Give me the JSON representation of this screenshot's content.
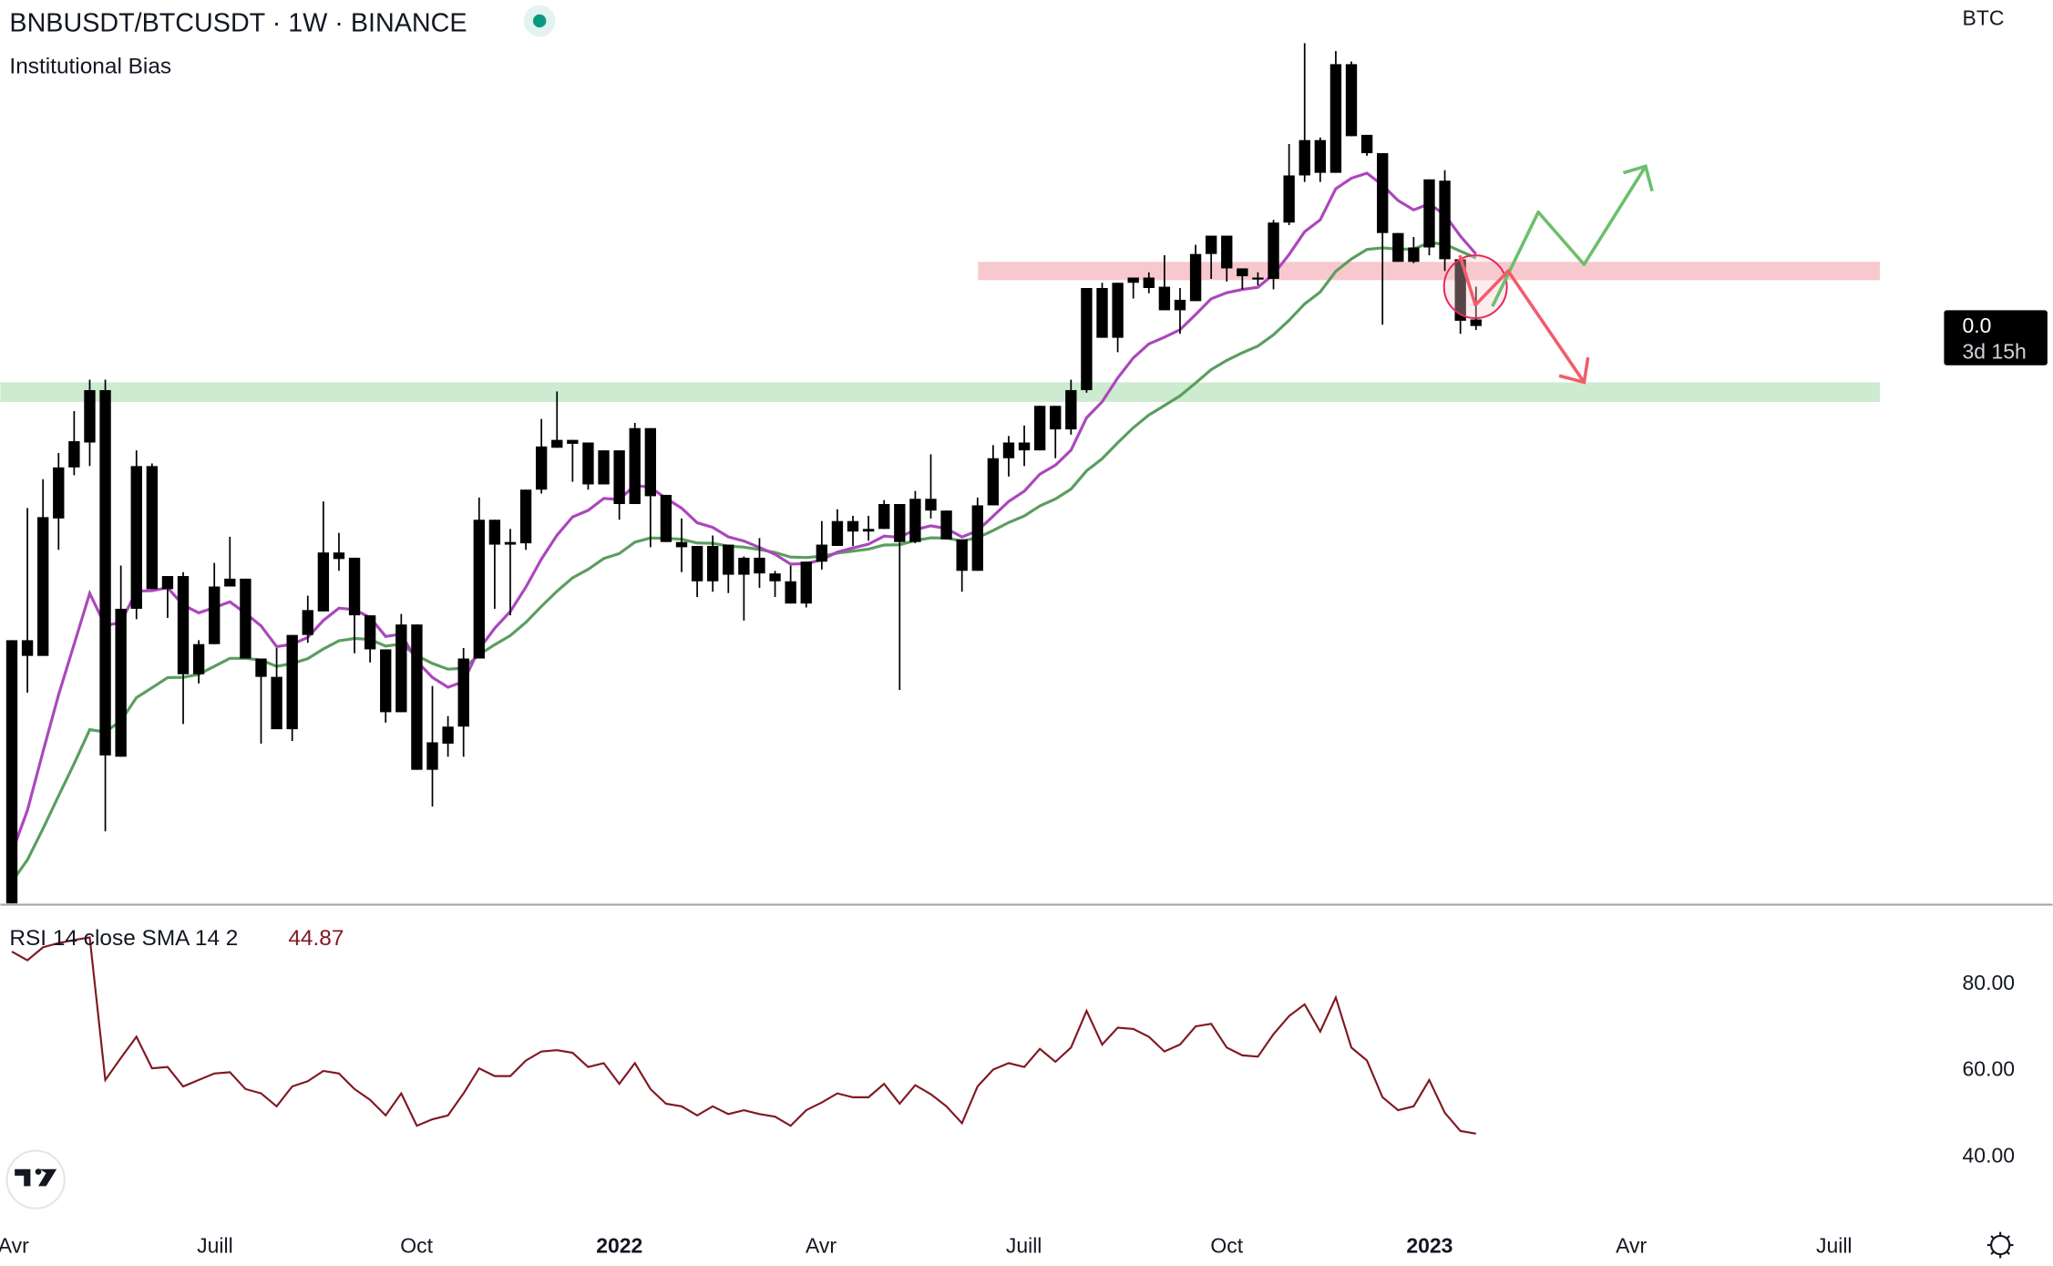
{
  "header": {
    "symbol_title": "BNBUSDT/BTCUSDT · 1W · BINANCE",
    "indicator_name": "Institutional Bias",
    "status_color": "#089981"
  },
  "price_axis": {
    "currency": "BTC",
    "last_price": "0.0",
    "countdown": "3d 15h"
  },
  "rsi": {
    "label": "RSI 14 close SMA 14 2",
    "value": "44.87",
    "value_color": "#801922",
    "ticks": [
      "80.00",
      "60.00",
      "40.00"
    ]
  },
  "time_axis": {
    "labels": [
      {
        "text": "Avr",
        "bold": false
      },
      {
        "text": "Juill",
        "bold": false
      },
      {
        "text": "Oct",
        "bold": false
      },
      {
        "text": "2022",
        "bold": true
      },
      {
        "text": "Avr",
        "bold": false
      },
      {
        "text": "Juill",
        "bold": false
      },
      {
        "text": "Oct",
        "bold": false
      },
      {
        "text": "2023",
        "bold": true
      },
      {
        "text": "Avr",
        "bold": false
      },
      {
        "text": "Juill",
        "bold": false
      }
    ]
  },
  "colors": {
    "candle": "#000000",
    "ema_fast": "#ab47bc",
    "ema_slow": "#5a9e5e",
    "rsi_line": "#801922",
    "resistance_zone": "#f8c8cf",
    "support_zone": "#cdebd0",
    "bull_path": "#6cbf6c",
    "bear_path": "#f25c6a"
  },
  "chart_data": {
    "type": "candlestick",
    "title": "BNBUSDT/BTCUSDT · 1W · BINANCE",
    "price_unit": "1e-5 BTC",
    "ylim": [
      700,
      2080
    ],
    "interval": "1W",
    "ema_fast_period": 9,
    "ema_slow_period": 21,
    "resistance_zone": [
      1652,
      1680
    ],
    "support_zone": [
      1466,
      1496
    ],
    "candles": [
      [
        696,
        1102,
        680,
        1102
      ],
      [
        1078,
        1304,
        1022,
        1102
      ],
      [
        1078,
        1348,
        1078,
        1290
      ],
      [
        1288,
        1388,
        1240,
        1366
      ],
      [
        1366,
        1452,
        1354,
        1406
      ],
      [
        1404,
        1500,
        1368,
        1484
      ],
      [
        1484,
        1500,
        810,
        926
      ],
      [
        924,
        1216,
        924,
        1150
      ],
      [
        1150,
        1392,
        1134,
        1368
      ],
      [
        1368,
        1372,
        1180,
        1180
      ],
      [
        1180,
        1200,
        1136,
        1200
      ],
      [
        1200,
        1206,
        974,
        1050
      ],
      [
        1050,
        1102,
        1036,
        1096
      ],
      [
        1096,
        1220,
        1096,
        1184
      ],
      [
        1184,
        1260,
        1184,
        1196
      ],
      [
        1196,
        1196,
        1074,
        1074
      ],
      [
        1074,
        1074,
        944,
        1046
      ],
      [
        1046,
        1090,
        966,
        966
      ],
      [
        966,
        1110,
        948,
        1110
      ],
      [
        1110,
        1170,
        1098,
        1148
      ],
      [
        1146,
        1314,
        1146,
        1236
      ],
      [
        1236,
        1266,
        1208,
        1226
      ],
      [
        1228,
        1228,
        1082,
        1140
      ],
      [
        1140,
        1140,
        1068,
        1088
      ],
      [
        1088,
        1088,
        976,
        992
      ],
      [
        992,
        1142,
        992,
        1126
      ],
      [
        1126,
        1126,
        904,
        904
      ],
      [
        904,
        1032,
        848,
        946
      ],
      [
        944,
        986,
        924,
        970
      ],
      [
        970,
        1090,
        924,
        1074
      ],
      [
        1074,
        1320,
        1074,
        1286
      ],
      [
        1286,
        1286,
        1150,
        1248
      ],
      [
        1252,
        1272,
        1140,
        1248
      ],
      [
        1250,
        1332,
        1240,
        1332
      ],
      [
        1332,
        1440,
        1326,
        1398
      ],
      [
        1396,
        1482,
        1396,
        1408
      ],
      [
        1408,
        1408,
        1344,
        1402
      ],
      [
        1404,
        1404,
        1332,
        1340
      ],
      [
        1340,
        1392,
        1340,
        1392
      ],
      [
        1392,
        1392,
        1286,
        1310
      ],
      [
        1310,
        1434,
        1310,
        1426
      ],
      [
        1426,
        1426,
        1244,
        1322
      ],
      [
        1324,
        1324,
        1252,
        1252
      ],
      [
        1252,
        1288,
        1206,
        1244
      ],
      [
        1246,
        1246,
        1168,
        1192
      ],
      [
        1192,
        1262,
        1176,
        1246
      ],
      [
        1248,
        1248,
        1174,
        1202
      ],
      [
        1202,
        1230,
        1132,
        1228
      ],
      [
        1228,
        1258,
        1182,
        1204
      ],
      [
        1204,
        1208,
        1168,
        1192
      ],
      [
        1192,
        1216,
        1158,
        1158
      ],
      [
        1158,
        1222,
        1152,
        1222
      ],
      [
        1222,
        1284,
        1210,
        1248
      ],
      [
        1246,
        1302,
        1246,
        1284
      ],
      [
        1284,
        1292,
        1246,
        1268
      ],
      [
        1268,
        1292,
        1254,
        1272
      ],
      [
        1272,
        1316,
        1272,
        1310
      ],
      [
        1310,
        1310,
        1026,
        1252
      ],
      [
        1252,
        1330,
        1250,
        1318
      ],
      [
        1318,
        1386,
        1288,
        1300
      ],
      [
        1300,
        1300,
        1256,
        1256
      ],
      [
        1256,
        1256,
        1176,
        1208
      ],
      [
        1208,
        1320,
        1208,
        1308
      ],
      [
        1308,
        1400,
        1308,
        1380
      ],
      [
        1380,
        1414,
        1352,
        1404
      ],
      [
        1404,
        1430,
        1368,
        1392
      ],
      [
        1392,
        1460,
        1392,
        1460
      ],
      [
        1460,
        1460,
        1380,
        1424
      ],
      [
        1424,
        1500,
        1416,
        1484
      ],
      [
        1484,
        1640,
        1480,
        1640
      ],
      [
        1640,
        1648,
        1564,
        1564
      ],
      [
        1564,
        1648,
        1542,
        1648
      ],
      [
        1648,
        1656,
        1624,
        1656
      ],
      [
        1656,
        1664,
        1632,
        1640
      ],
      [
        1642,
        1690,
        1606,
        1606
      ],
      [
        1606,
        1640,
        1570,
        1622
      ],
      [
        1620,
        1706,
        1620,
        1692
      ],
      [
        1692,
        1720,
        1654,
        1720
      ],
      [
        1720,
        1720,
        1650,
        1670
      ],
      [
        1670,
        1670,
        1638,
        1658
      ],
      [
        1656,
        1664,
        1644,
        1654
      ],
      [
        1654,
        1744,
        1638,
        1740
      ],
      [
        1740,
        1860,
        1736,
        1812
      ],
      [
        1812,
        2014,
        1802,
        1866
      ],
      [
        1866,
        1870,
        1802,
        1816
      ],
      [
        1816,
        2002,
        1816,
        1982
      ],
      [
        1982,
        1986,
        1872,
        1872
      ],
      [
        1874,
        1874,
        1842,
        1846
      ],
      [
        1846,
        1846,
        1584,
        1724
      ],
      [
        1724,
        1724,
        1680,
        1680
      ],
      [
        1680,
        1718,
        1678,
        1702
      ],
      [
        1702,
        1806,
        1690,
        1806
      ],
      [
        1804,
        1820,
        1666,
        1684
      ],
      [
        1684,
        1684,
        1570,
        1590
      ],
      [
        1592,
        1642,
        1576,
        1582
      ]
    ],
    "rsi_values": [
      87,
      85,
      88,
      89,
      89.7,
      90.3,
      57.3,
      62.4,
      67.3,
      60,
      60.3,
      55.8,
      57.3,
      58.8,
      59.1,
      55.2,
      54.2,
      51.2,
      55.8,
      57,
      59.4,
      58.8,
      55.2,
      52.7,
      49.1,
      54.2,
      46.7,
      48.2,
      49.1,
      54.2,
      60,
      58.2,
      58.2,
      61.8,
      63.9,
      64.2,
      63.6,
      60.3,
      61.2,
      56.4,
      61.2,
      55.2,
      51.8,
      51.2,
      49.1,
      51.2,
      49.4,
      50.3,
      49.4,
      48.8,
      46.7,
      50.3,
      52.1,
      54.2,
      53.3,
      53.3,
      56.4,
      51.8,
      56.1,
      54,
      51.2,
      47.3,
      55.8,
      59.7,
      61.2,
      60.3,
      64.5,
      61.5,
      64.8,
      73.3,
      65.5,
      69.4,
      69.1,
      67.3,
      63.9,
      65.5,
      69.7,
      70.3,
      64.8,
      63,
      62.7,
      67.9,
      72.1,
      74.8,
      68.5,
      76.4,
      64.8,
      61.8,
      53.3,
      50.3,
      51.2,
      57.3,
      49.7,
      45.5,
      44.87
    ]
  }
}
